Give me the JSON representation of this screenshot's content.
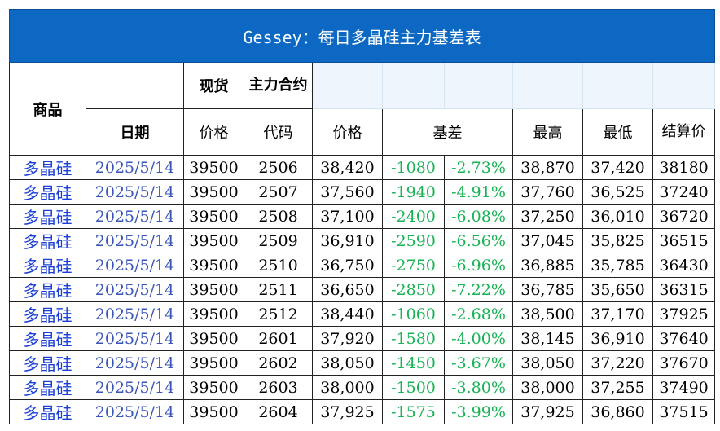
{
  "title": "Gessey：每日多晶硅主力基差表",
  "header": {
    "product": "商品",
    "spot": "现货",
    "main_contract": "主力合约",
    "date": "日期",
    "spot_price": "价格",
    "code": "代码",
    "price": "价格",
    "basis": "基差",
    "high": "最高",
    "low": "最低",
    "settle": "结算价"
  },
  "rows": [
    {
      "product": "多晶硅",
      "date": "2025/5/14",
      "spot": "39500",
      "code": "2506",
      "price": "38,420",
      "basis": "-1080",
      "basis_pct": "-2.73%",
      "high": "38,870",
      "low": "37,420",
      "settle": "38180"
    },
    {
      "product": "多晶硅",
      "date": "2025/5/14",
      "spot": "39500",
      "code": "2507",
      "price": "37,560",
      "basis": "-1940",
      "basis_pct": "-4.91%",
      "high": "37,760",
      "low": "36,525",
      "settle": "37240"
    },
    {
      "product": "多晶硅",
      "date": "2025/5/14",
      "spot": "39500",
      "code": "2508",
      "price": "37,100",
      "basis": "-2400",
      "basis_pct": "-6.08%",
      "high": "37,250",
      "low": "36,010",
      "settle": "36720"
    },
    {
      "product": "多晶硅",
      "date": "2025/5/14",
      "spot": "39500",
      "code": "2509",
      "price": "36,910",
      "basis": "-2590",
      "basis_pct": "-6.56%",
      "high": "37,045",
      "low": "35,825",
      "settle": "36515"
    },
    {
      "product": "多晶硅",
      "date": "2025/5/14",
      "spot": "39500",
      "code": "2510",
      "price": "36,750",
      "basis": "-2750",
      "basis_pct": "-6.96%",
      "high": "36,885",
      "low": "35,785",
      "settle": "36430"
    },
    {
      "product": "多晶硅",
      "date": "2025/5/14",
      "spot": "39500",
      "code": "2511",
      "price": "36,650",
      "basis": "-2850",
      "basis_pct": "-7.22%",
      "high": "36,785",
      "low": "35,650",
      "settle": "36315"
    },
    {
      "product": "多晶硅",
      "date": "2025/5/14",
      "spot": "39500",
      "code": "2512",
      "price": "38,440",
      "basis": "-1060",
      "basis_pct": "-2.68%",
      "high": "38,500",
      "low": "37,170",
      "settle": "37925"
    },
    {
      "product": "多晶硅",
      "date": "2025/5/14",
      "spot": "39500",
      "code": "2601",
      "price": "37,920",
      "basis": "-1580",
      "basis_pct": "-4.00%",
      "high": "38,145",
      "low": "36,910",
      "settle": "37640"
    },
    {
      "product": "多晶硅",
      "date": "2025/5/14",
      "spot": "39500",
      "code": "2602",
      "price": "38,050",
      "basis": "-1450",
      "basis_pct": "-3.67%",
      "high": "38,050",
      "low": "37,220",
      "settle": "37670"
    },
    {
      "product": "多晶硅",
      "date": "2025/5/14",
      "spot": "39500",
      "code": "2603",
      "price": "38,000",
      "basis": "-1500",
      "basis_pct": "-3.80%",
      "high": "38,000",
      "low": "37,255",
      "settle": "37490"
    },
    {
      "product": "多晶硅",
      "date": "2025/5/14",
      "spot": "39500",
      "code": "2604",
      "price": "37,925",
      "basis": "-1575",
      "basis_pct": "-3.99%",
      "high": "37,925",
      "low": "36,860",
      "settle": "37515"
    }
  ],
  "colors": {
    "title_bg": "#0c68c2",
    "title_text": "#ffffff",
    "product_text": "#1a3fd6",
    "date_text": "#3b55b8",
    "basis_text": "#18b354"
  }
}
